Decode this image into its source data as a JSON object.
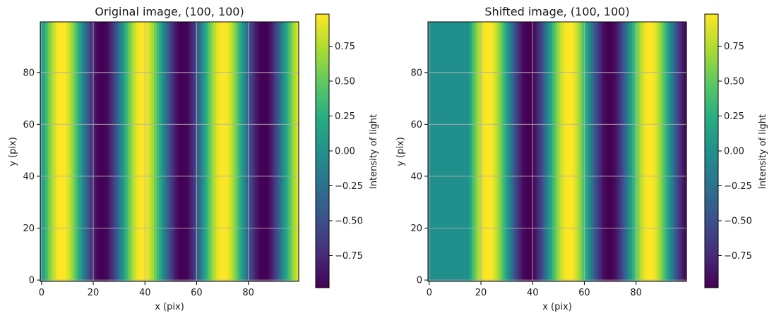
{
  "chart_data": [
    {
      "type": "heatmap",
      "title": "Original image, (100, 100)",
      "xlabel": "x (pix)",
      "ylabel": "y (pix)",
      "xlim": [
        -0.5,
        99.5
      ],
      "ylim": [
        -0.5,
        99.5
      ],
      "xticks": [
        0,
        20,
        40,
        60,
        80
      ],
      "yticks": [
        0,
        20,
        40,
        60,
        80
      ],
      "grid": true,
      "origin": "lower",
      "colormap": "viridis",
      "values_formula": "sin(2*pi*x/31.25)",
      "values_by_column_note_x": [
        0,
        7.8,
        15.6,
        23.4,
        31.25,
        39.1,
        46.9,
        54.7,
        62.5,
        70.3,
        78.1,
        85.9,
        93.75
      ],
      "values_at_x": [
        0.0,
        1.0,
        0.0,
        -1.0,
        0.0,
        1.0,
        0.0,
        -1.0,
        0.0,
        1.0,
        0.0,
        -1.0,
        0.0
      ],
      "colorbar": {
        "label": "Intensity of light",
        "range": [
          -0.98,
          0.98
        ],
        "ticks": [
          0.75,
          0.5,
          0.25,
          0.0,
          -0.25,
          -0.5,
          -0.75
        ],
        "tick_labels": [
          "0.75",
          "0.50",
          "0.25",
          "0.00",
          "−0.25",
          "−0.50",
          "−0.75"
        ]
      }
    },
    {
      "type": "heatmap",
      "title": "Shifted image, (100, 100)",
      "xlabel": "x (pix)",
      "ylabel": "y (pix)",
      "xlim": [
        -0.5,
        99.5
      ],
      "ylim": [
        -0.5,
        99.5
      ],
      "xticks": [
        0,
        20,
        40,
        60,
        80
      ],
      "yticks": [
        0,
        20,
        40,
        60,
        80
      ],
      "grid": true,
      "origin": "lower",
      "colormap": "viridis",
      "shift_x": 15,
      "fill_value": 0.0,
      "values_formula": "x < 15 ? 0 : sin(2*pi*(x-15)/31.25)",
      "colorbar": {
        "label": "Intensity of light",
        "range": [
          -0.98,
          0.98
        ],
        "ticks": [
          0.75,
          0.5,
          0.25,
          0.0,
          -0.25,
          -0.5,
          -0.75
        ],
        "tick_labels": [
          "0.75",
          "0.50",
          "0.25",
          "0.00",
          "−0.25",
          "−0.50",
          "−0.75"
        ]
      }
    }
  ],
  "colors": {
    "grid": "#b0b0b0",
    "axis": "#000000",
    "text": "#1a1a1a"
  }
}
